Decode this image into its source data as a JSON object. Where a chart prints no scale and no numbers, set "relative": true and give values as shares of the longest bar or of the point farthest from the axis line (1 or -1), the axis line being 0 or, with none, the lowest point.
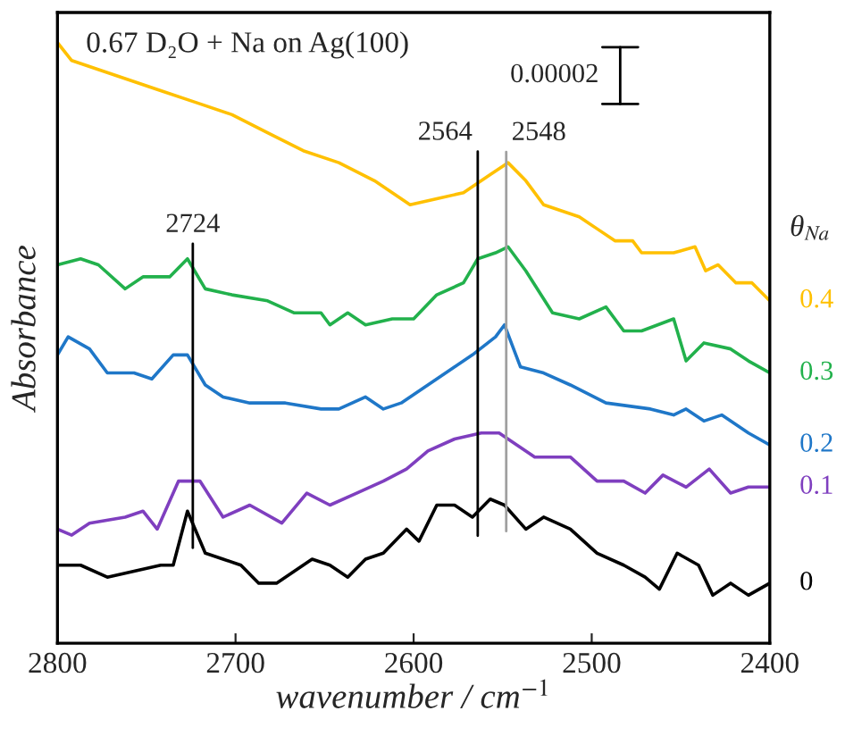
{
  "chart_data": {
    "type": "line",
    "relative": true,
    "title": "0.67 D₂O + Na on Ag(100)",
    "xlabel": "wavenumber / cm$^{−1}$",
    "ylabel": "Absorbance",
    "legend_title": "θ$_{Na}$",
    "xlim": [
      2800,
      2400
    ],
    "xticks": [
      2800,
      2700,
      2600,
      2500,
      2400
    ],
    "grid": false,
    "tick_labels": "x",
    "annotations": [
      "0.00002"
    ],
    "ref_lines": [
      {
        "axis": "x",
        "value": 2724,
        "label": "2724",
        "color": "#000000"
      },
      {
        "axis": "x",
        "value": 2564,
        "label": "2564",
        "color": "#000000"
      },
      {
        "axis": "x",
        "value": 2548,
        "label": "2548",
        "color": "#a0a0a0"
      }
    ],
    "series": [
      {
        "name": "0.4",
        "color": "#ffc000",
        "x": [
          2800,
          2792,
          2782,
          2762,
          2742,
          2722,
          2702,
          2682,
          2662,
          2642,
          2622,
          2602,
          2587,
          2572,
          2557,
          2547,
          2537,
          2527,
          2517,
          2507,
          2497,
          2487,
          2477,
          2472,
          2464,
          2454,
          2442,
          2436,
          2429,
          2419,
          2410,
          2400
        ],
        "values": [
          1.0,
          0.97,
          0.96,
          0.94,
          0.92,
          0.9,
          0.88,
          0.85,
          0.82,
          0.8,
          0.77,
          0.73,
          0.74,
          0.75,
          0.78,
          0.8,
          0.77,
          0.73,
          0.72,
          0.71,
          0.69,
          0.67,
          0.67,
          0.65,
          0.65,
          0.65,
          0.66,
          0.62,
          0.63,
          0.6,
          0.6,
          0.57
        ]
      },
      {
        "name": "0.3",
        "color": "#22b14c",
        "x": [
          2800,
          2787,
          2777,
          2762,
          2752,
          2737,
          2727,
          2717,
          2702,
          2682,
          2667,
          2652,
          2647,
          2637,
          2627,
          2612,
          2600,
          2587,
          2572,
          2564,
          2554,
          2547,
          2537,
          2522,
          2507,
          2492,
          2482,
          2472,
          2454,
          2447,
          2437,
          2422,
          2412,
          2400
        ],
        "values": [
          0.63,
          0.64,
          0.63,
          0.59,
          0.61,
          0.61,
          0.64,
          0.59,
          0.58,
          0.57,
          0.55,
          0.55,
          0.53,
          0.55,
          0.53,
          0.54,
          0.54,
          0.58,
          0.6,
          0.64,
          0.65,
          0.66,
          0.62,
          0.55,
          0.54,
          0.56,
          0.52,
          0.52,
          0.54,
          0.47,
          0.5,
          0.49,
          0.47,
          0.45
        ]
      },
      {
        "name": "0.2",
        "color": "#1f77c8",
        "x": [
          2800,
          2794,
          2782,
          2772,
          2757,
          2747,
          2735,
          2727,
          2717,
          2707,
          2692,
          2672,
          2652,
          2642,
          2627,
          2617,
          2607,
          2592,
          2577,
          2567,
          2554,
          2549,
          2540,
          2527,
          2512,
          2492,
          2467,
          2454,
          2447,
          2437,
          2427,
          2412,
          2400
        ],
        "values": [
          0.48,
          0.51,
          0.49,
          0.45,
          0.45,
          0.44,
          0.48,
          0.48,
          0.43,
          0.41,
          0.4,
          0.4,
          0.39,
          0.39,
          0.41,
          0.39,
          0.4,
          0.43,
          0.46,
          0.48,
          0.51,
          0.53,
          0.46,
          0.45,
          0.43,
          0.4,
          0.39,
          0.38,
          0.39,
          0.37,
          0.38,
          0.35,
          0.33
        ]
      },
      {
        "name": "0.1",
        "color": "#7f3fbf",
        "x": [
          2800,
          2792,
          2782,
          2762,
          2752,
          2744,
          2732,
          2720,
          2707,
          2692,
          2674,
          2660,
          2647,
          2632,
          2617,
          2604,
          2592,
          2577,
          2562,
          2552,
          2542,
          2532,
          2512,
          2497,
          2482,
          2470,
          2460,
          2447,
          2434,
          2422,
          2412,
          2400
        ],
        "values": [
          0.19,
          0.18,
          0.2,
          0.21,
          0.22,
          0.19,
          0.27,
          0.27,
          0.21,
          0.23,
          0.2,
          0.25,
          0.23,
          0.25,
          0.27,
          0.29,
          0.32,
          0.34,
          0.35,
          0.35,
          0.33,
          0.31,
          0.31,
          0.27,
          0.27,
          0.25,
          0.28,
          0.26,
          0.29,
          0.25,
          0.26,
          0.26
        ]
      },
      {
        "name": "0",
        "color": "#000000",
        "x": [
          2800,
          2787,
          2772,
          2757,
          2742,
          2735,
          2727,
          2717,
          2707,
          2697,
          2687,
          2677,
          2667,
          2657,
          2647,
          2637,
          2627,
          2617,
          2604,
          2597,
          2587,
          2577,
          2567,
          2557,
          2549,
          2537,
          2527,
          2512,
          2497,
          2482,
          2470,
          2462,
          2452,
          2440,
          2432,
          2422,
          2412,
          2400
        ],
        "values": [
          0.13,
          0.13,
          0.11,
          0.12,
          0.13,
          0.13,
          0.22,
          0.15,
          0.14,
          0.13,
          0.1,
          0.1,
          0.12,
          0.14,
          0.13,
          0.11,
          0.14,
          0.15,
          0.19,
          0.17,
          0.23,
          0.23,
          0.21,
          0.24,
          0.23,
          0.19,
          0.21,
          0.19,
          0.15,
          0.13,
          0.11,
          0.09,
          0.15,
          0.13,
          0.08,
          0.1,
          0.08,
          0.1
        ]
      }
    ]
  }
}
